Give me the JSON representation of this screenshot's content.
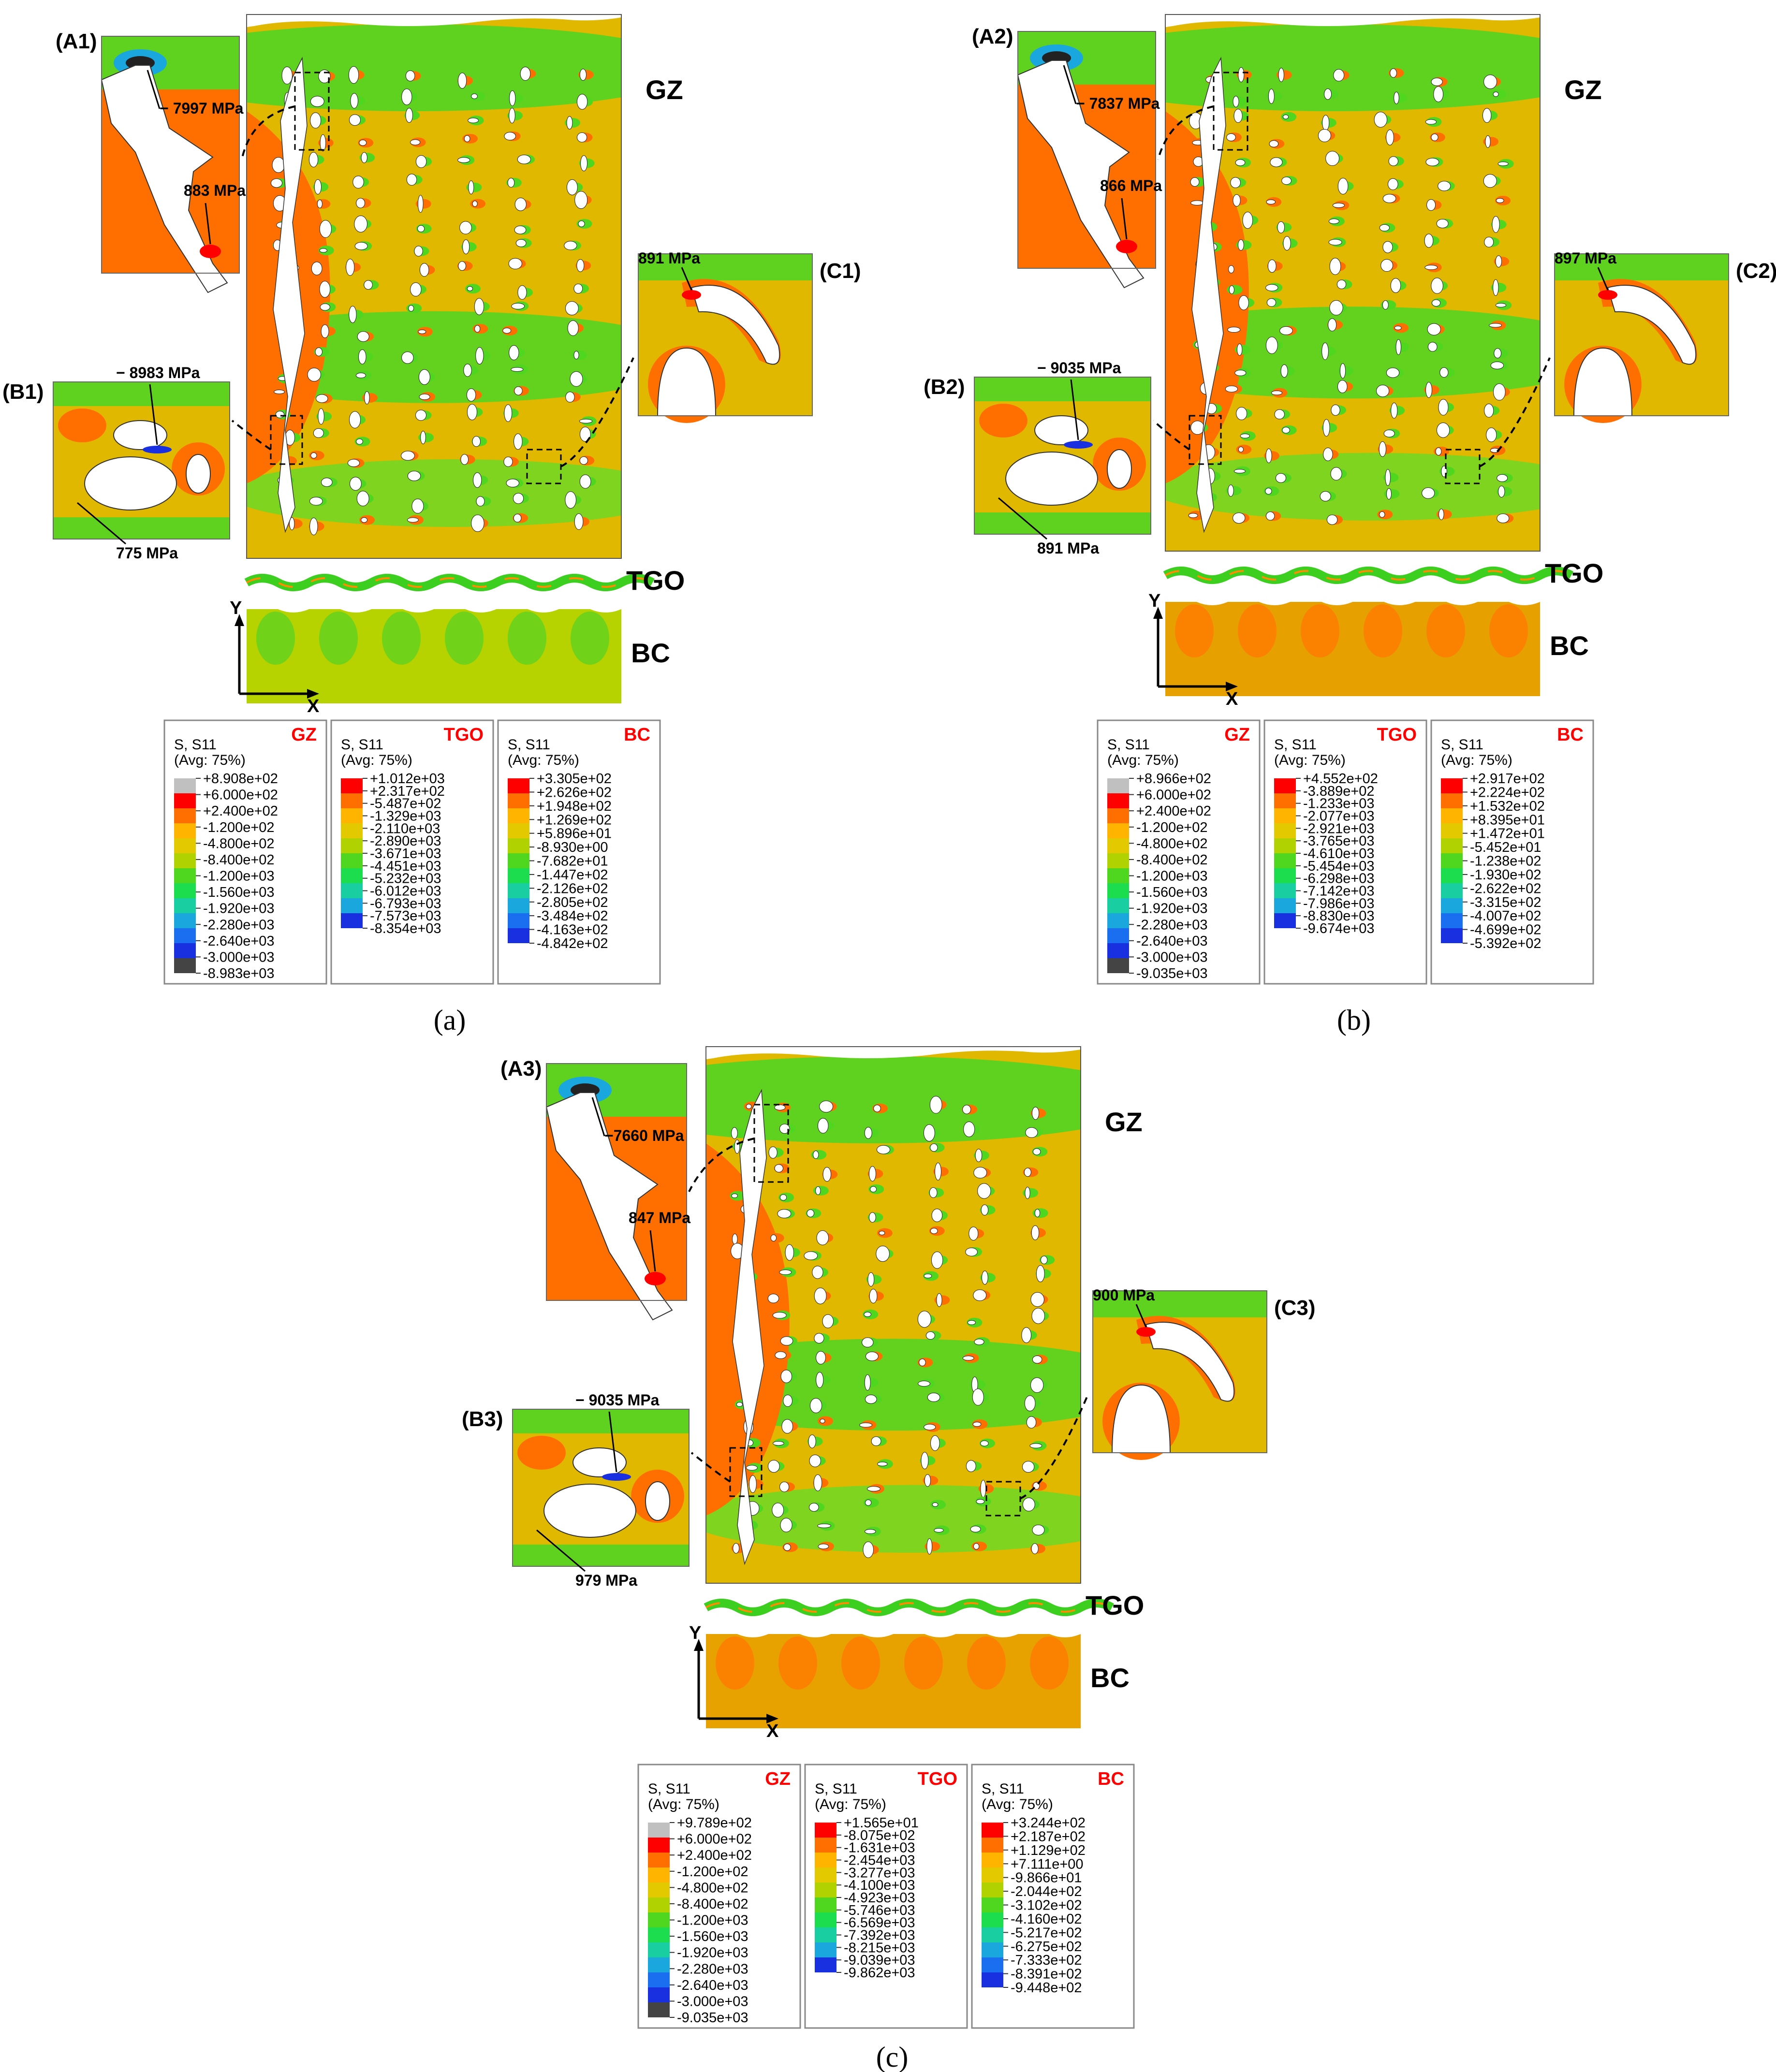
{
  "layer_labels": {
    "gz": "GZ",
    "tgo": "TGO",
    "bc": "BC"
  },
  "axis_labels": {
    "y": "Y",
    "x": "X"
  },
  "panels": [
    {
      "caption": "(a)",
      "insets": {
        "a": "(A1)",
        "b": "(B1)",
        "c": "(C1)"
      },
      "annotations": {
        "a_min": "− 7997 MPa",
        "a_max": "883 MPa",
        "b_min": "− 8983 MPa",
        "b_max": "775 MPa",
        "c_max": "891 MPa"
      },
      "legends": [
        {
          "header": "S, S11",
          "avg": "(Avg: 75%)",
          "tag": "GZ",
          "colors": [
            "#c0c0c0",
            "#ff0000",
            "#ff6f00",
            "#ffb400",
            "#e2c900",
            "#b0d300",
            "#4fd61f",
            "#1cdd4d",
            "#19cfa2",
            "#1aa7dd",
            "#1a6ff0",
            "#1830e0",
            "#444444"
          ],
          "values": [
            "+8.908e+02",
            "+6.000e+02",
            "+2.400e+02",
            "-1.200e+02",
            "-4.800e+02",
            "-8.400e+02",
            "-1.200e+03",
            "-1.560e+03",
            "-1.920e+03",
            "-2.280e+03",
            "-2.640e+03",
            "-3.000e+03",
            "-8.983e+03"
          ]
        },
        {
          "header": "S, S11",
          "avg": "(Avg: 75%)",
          "tag": "TGO",
          "colors": [
            "#ff0000",
            "#ff6f00",
            "#ffb400",
            "#e2c900",
            "#b0d300",
            "#4fd61f",
            "#1cdd4d",
            "#19cfa2",
            "#1aa7dd",
            "#1830e0"
          ],
          "values": [
            "+1.012e+03",
            "+2.317e+02",
            "-5.487e+02",
            "-1.329e+03",
            "-2.110e+03",
            "-2.890e+03",
            "-3.671e+03",
            "-4.451e+03",
            "-5.232e+03",
            "-6.012e+03",
            "-6.793e+03",
            "-7.573e+03",
            "-8.354e+03"
          ]
        },
        {
          "header": "S, S11",
          "avg": "(Avg: 75%)",
          "tag": "BC",
          "colors": [
            "#ff0000",
            "#ff6f00",
            "#ffb400",
            "#e2c900",
            "#b0d300",
            "#4fd61f",
            "#1cdd4d",
            "#19cfa2",
            "#1aa7dd",
            "#1a6ff0",
            "#1830e0"
          ],
          "values": [
            "+3.305e+02",
            "+2.626e+02",
            "+1.948e+02",
            "+1.269e+02",
            "+5.896e+01",
            "-8.930e+00",
            "-7.682e+01",
            "-1.447e+02",
            "-2.126e+02",
            "-2.805e+02",
            "-3.484e+02",
            "-4.163e+02",
            "-4.842e+02"
          ]
        }
      ]
    },
    {
      "caption": "(b)",
      "insets": {
        "a": "(A2)",
        "b": "(B2)",
        "c": "(C2)"
      },
      "annotations": {
        "a_min": "− 7837 MPa",
        "a_max": "866 MPa",
        "b_min": "− 9035 MPa",
        "b_max": "891 MPa",
        "c_max": "897 MPa"
      },
      "legends": [
        {
          "header": "S, S11",
          "avg": "(Avg: 75%)",
          "tag": "GZ",
          "colors": [
            "#c0c0c0",
            "#ff0000",
            "#ff6f00",
            "#ffb400",
            "#e2c900",
            "#b0d300",
            "#4fd61f",
            "#1cdd4d",
            "#19cfa2",
            "#1aa7dd",
            "#1a6ff0",
            "#1830e0",
            "#444444"
          ],
          "values": [
            "+8.966e+02",
            "+6.000e+02",
            "+2.400e+02",
            "-1.200e+02",
            "-4.800e+02",
            "-8.400e+02",
            "-1.200e+03",
            "-1.560e+03",
            "-1.920e+03",
            "-2.280e+03",
            "-2.640e+03",
            "-3.000e+03",
            "-9.035e+03"
          ]
        },
        {
          "header": "S, S11",
          "avg": "(Avg: 75%)",
          "tag": "TGO",
          "colors": [
            "#ff0000",
            "#ff6f00",
            "#ffb400",
            "#e2c900",
            "#b0d300",
            "#4fd61f",
            "#1cdd4d",
            "#19cfa2",
            "#1aa7dd",
            "#1830e0"
          ],
          "values": [
            "+4.552e+02",
            "-3.889e+02",
            "-1.233e+03",
            "-2.077e+03",
            "-2.921e+03",
            "-3.765e+03",
            "-4.610e+03",
            "-5.454e+03",
            "-6.298e+03",
            "-7.142e+03",
            "-7.986e+03",
            "-8.830e+03",
            "-9.674e+03"
          ]
        },
        {
          "header": "S, S11",
          "avg": "(Avg: 75%)",
          "tag": "BC",
          "colors": [
            "#ff0000",
            "#ff6f00",
            "#ffb400",
            "#e2c900",
            "#b0d300",
            "#4fd61f",
            "#1cdd4d",
            "#19cfa2",
            "#1aa7dd",
            "#1a6ff0",
            "#1830e0"
          ],
          "values": [
            "+2.917e+02",
            "+2.224e+02",
            "+1.532e+02",
            "+8.395e+01",
            "+1.472e+01",
            "-5.452e+01",
            "-1.238e+02",
            "-1.930e+02",
            "-2.622e+02",
            "-3.315e+02",
            "-4.007e+02",
            "-4.699e+02",
            "-5.392e+02"
          ]
        }
      ]
    },
    {
      "caption": "(c)",
      "insets": {
        "a": "(A3)",
        "b": "(B3)",
        "c": "(C3)"
      },
      "annotations": {
        "a_min": "−7660 MPa",
        "a_max": "847 MPa",
        "b_min": "− 9035 MPa",
        "b_max": "979 MPa",
        "c_max": "900 MPa"
      },
      "legends": [
        {
          "header": "S, S11",
          "avg": "(Avg: 75%)",
          "tag": "GZ",
          "colors": [
            "#c0c0c0",
            "#ff0000",
            "#ff6f00",
            "#ffb400",
            "#e2c900",
            "#b0d300",
            "#4fd61f",
            "#1cdd4d",
            "#19cfa2",
            "#1aa7dd",
            "#1a6ff0",
            "#1830e0",
            "#444444"
          ],
          "values": [
            "+9.789e+02",
            "+6.000e+02",
            "+2.400e+02",
            "-1.200e+02",
            "-4.800e+02",
            "-8.400e+02",
            "-1.200e+03",
            "-1.560e+03",
            "-1.920e+03",
            "-2.280e+03",
            "-2.640e+03",
            "-3.000e+03",
            "-9.035e+03"
          ]
        },
        {
          "header": "S, S11",
          "avg": "(Avg: 75%)",
          "tag": "TGO",
          "colors": [
            "#ff0000",
            "#ff6f00",
            "#ffb400",
            "#e2c900",
            "#b0d300",
            "#4fd61f",
            "#1cdd4d",
            "#19cfa2",
            "#1aa7dd",
            "#1830e0"
          ],
          "values": [
            "+1.565e+01",
            "-8.075e+02",
            "-1.631e+03",
            "-2.454e+03",
            "-3.277e+03",
            "-4.100e+03",
            "-4.923e+03",
            "-5.746e+03",
            "-6.569e+03",
            "-7.392e+03",
            "-8.215e+03",
            "-9.039e+03",
            "-9.862e+03"
          ]
        },
        {
          "header": "S, S11",
          "avg": "(Avg: 75%)",
          "tag": "BC",
          "colors": [
            "#ff0000",
            "#ff6f00",
            "#ffb400",
            "#e2c900",
            "#b0d300",
            "#4fd61f",
            "#1cdd4d",
            "#19cfa2",
            "#1aa7dd",
            "#1a6ff0",
            "#1830e0"
          ],
          "values": [
            "+3.244e+02",
            "+2.187e+02",
            "+1.129e+02",
            "+7.111e+00",
            "-9.866e+01",
            "-2.044e+02",
            "-3.102e+02",
            "-4.160e+02",
            "-5.217e+02",
            "-6.275e+02",
            "-7.333e+02",
            "-8.391e+02",
            "-9.448e+02"
          ]
        }
      ]
    }
  ]
}
